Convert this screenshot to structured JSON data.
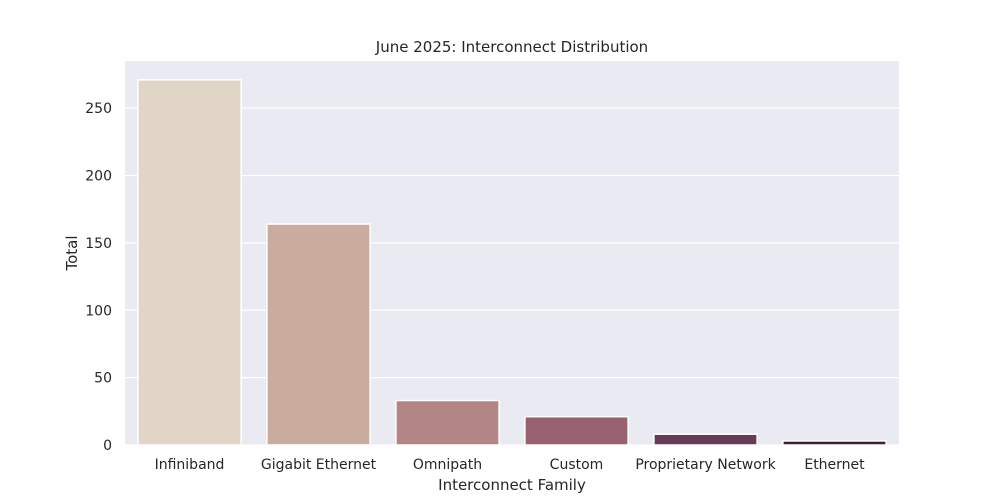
{
  "chart_data": {
    "type": "bar",
    "title": "June 2025: Interconnect Distribution",
    "xlabel": "Interconnect Family",
    "ylabel": "Total",
    "categories": [
      "Infiniband",
      "Gigabit Ethernet",
      "Omnipath",
      "Custom",
      "Proprietary Network",
      "Ethernet"
    ],
    "values": [
      271,
      164,
      33,
      21,
      8,
      3
    ],
    "ylim": [
      0,
      285
    ],
    "yticks": [
      0,
      50,
      100,
      150,
      200,
      250
    ],
    "grid": true,
    "colors": [
      "#e1d5c8",
      "#caac9f",
      "#b38585",
      "#97616f",
      "#693b53",
      "#3e2138"
    ],
    "background": "#eaeaf2"
  }
}
